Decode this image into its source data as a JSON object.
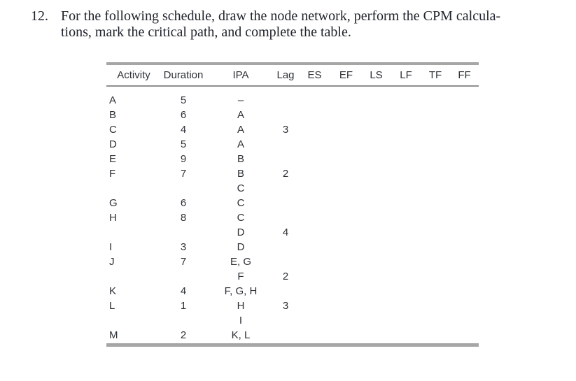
{
  "problem": {
    "number": "12.",
    "lines": [
      "For the following schedule, draw the node network, perform the CPM calcula-",
      "tions, mark the critical path, and complete the table."
    ]
  },
  "table": {
    "columns": [
      "Activity",
      "Duration",
      "IPA",
      "Lag",
      "ES",
      "EF",
      "LS",
      "LF",
      "TF",
      "FF"
    ],
    "rows": [
      {
        "activity": "A",
        "duration": "5",
        "ipa": "–",
        "lag": "",
        "es": "",
        "ef": "",
        "ls": "",
        "lf": "",
        "tf": "",
        "ff": ""
      },
      {
        "activity": "B",
        "duration": "6",
        "ipa": "A",
        "lag": "",
        "es": "",
        "ef": "",
        "ls": "",
        "lf": "",
        "tf": "",
        "ff": ""
      },
      {
        "activity": "C",
        "duration": "4",
        "ipa": "A",
        "lag": "3",
        "es": "",
        "ef": "",
        "ls": "",
        "lf": "",
        "tf": "",
        "ff": ""
      },
      {
        "activity": "D",
        "duration": "5",
        "ipa": "A",
        "lag": "",
        "es": "",
        "ef": "",
        "ls": "",
        "lf": "",
        "tf": "",
        "ff": ""
      },
      {
        "activity": "E",
        "duration": "9",
        "ipa": "B",
        "lag": "",
        "es": "",
        "ef": "",
        "ls": "",
        "lf": "",
        "tf": "",
        "ff": ""
      },
      {
        "activity": "F",
        "duration": "7",
        "ipa": "B",
        "lag": "2",
        "es": "",
        "ef": "",
        "ls": "",
        "lf": "",
        "tf": "",
        "ff": ""
      },
      {
        "activity": "",
        "duration": "",
        "ipa": "C",
        "lag": "",
        "es": "",
        "ef": "",
        "ls": "",
        "lf": "",
        "tf": "",
        "ff": ""
      },
      {
        "activity": "G",
        "duration": "6",
        "ipa": "C",
        "lag": "",
        "es": "",
        "ef": "",
        "ls": "",
        "lf": "",
        "tf": "",
        "ff": ""
      },
      {
        "activity": "H",
        "duration": "8",
        "ipa": "C",
        "lag": "",
        "es": "",
        "ef": "",
        "ls": "",
        "lf": "",
        "tf": "",
        "ff": ""
      },
      {
        "activity": "",
        "duration": "",
        "ipa": "D",
        "lag": "4",
        "es": "",
        "ef": "",
        "ls": "",
        "lf": "",
        "tf": "",
        "ff": ""
      },
      {
        "activity": "I",
        "duration": "3",
        "ipa": "D",
        "lag": "",
        "es": "",
        "ef": "",
        "ls": "",
        "lf": "",
        "tf": "",
        "ff": ""
      },
      {
        "activity": "J",
        "duration": "7",
        "ipa": "E, G",
        "lag": "",
        "es": "",
        "ef": "",
        "ls": "",
        "lf": "",
        "tf": "",
        "ff": ""
      },
      {
        "activity": "",
        "duration": "",
        "ipa": "F",
        "lag": "2",
        "es": "",
        "ef": "",
        "ls": "",
        "lf": "",
        "tf": "",
        "ff": ""
      },
      {
        "activity": "K",
        "duration": "4",
        "ipa": "F, G, H",
        "lag": "",
        "es": "",
        "ef": "",
        "ls": "",
        "lf": "",
        "tf": "",
        "ff": ""
      },
      {
        "activity": "L",
        "duration": "1",
        "ipa": "H",
        "lag": "3",
        "es": "",
        "ef": "",
        "ls": "",
        "lf": "",
        "tf": "",
        "ff": ""
      },
      {
        "activity": "",
        "duration": "",
        "ipa": "I",
        "lag": "",
        "es": "",
        "ef": "",
        "ls": "",
        "lf": "",
        "tf": "",
        "ff": ""
      },
      {
        "activity": "M",
        "duration": "2",
        "ipa": "K, L",
        "lag": "",
        "es": "",
        "ef": "",
        "ls": "",
        "lf": "",
        "tf": "",
        "ff": ""
      }
    ]
  },
  "colors": {
    "rule_thick": "#a6a6a6",
    "rule_thin": "#8f8f8f",
    "table_text": "#2d3136",
    "heading_text": "#20242c",
    "background": "#ffffff"
  }
}
